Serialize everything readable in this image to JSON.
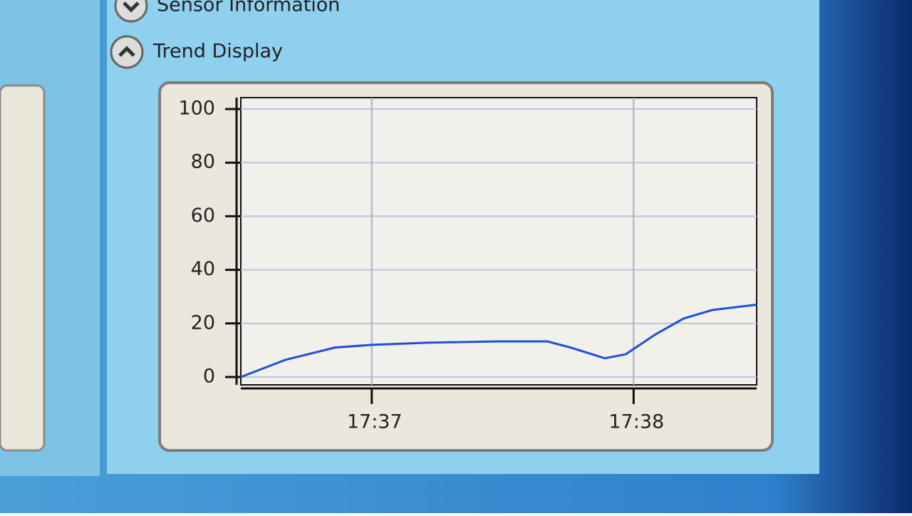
{
  "sections": [
    {
      "label": "Sensor Information"
    },
    {
      "label": "Trend Display"
    }
  ],
  "chart_data": {
    "type": "line",
    "x": [
      1056.5,
      1056.67,
      1056.86,
      1057,
      1057.21,
      1057.48,
      1057.67,
      1057.76,
      1057.89,
      1057.97,
      1058.08,
      1058.19,
      1058.3,
      1058.47
    ],
    "series": [
      {
        "color": "#1f4fd8",
        "values": [
          0,
          6.4,
          11,
          12,
          12.8,
          13.3,
          13.3,
          11,
          7,
          8.5,
          15.7,
          21.8,
          25,
          27
        ]
      }
    ],
    "xlim": [
      1056.5,
      1058.47
    ],
    "xticks": [
      {
        "value": 1057,
        "label": "17:37"
      },
      {
        "value": 1058,
        "label": "17:38"
      }
    ],
    "ylim": [
      0,
      100
    ],
    "yticks": [
      0,
      20,
      40,
      60,
      80,
      100
    ],
    "grid": true
  }
}
